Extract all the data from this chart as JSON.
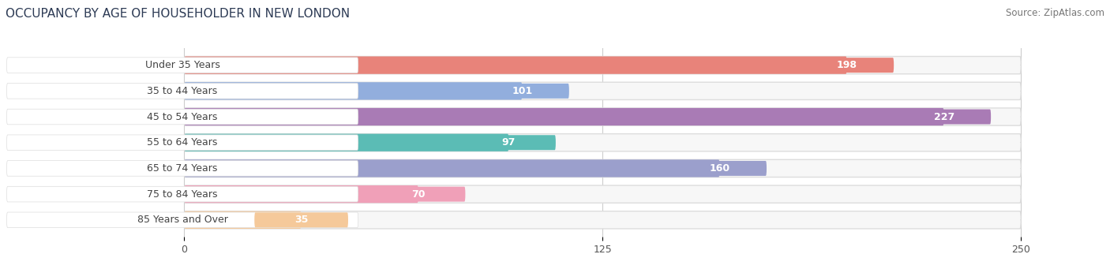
{
  "title": "OCCUPANCY BY AGE OF HOUSEHOLDER IN NEW LONDON",
  "source": "Source: ZipAtlas.com",
  "categories": [
    "Under 35 Years",
    "35 to 44 Years",
    "45 to 54 Years",
    "55 to 64 Years",
    "65 to 74 Years",
    "75 to 84 Years",
    "85 Years and Over"
  ],
  "values": [
    198,
    101,
    227,
    97,
    160,
    70,
    35
  ],
  "bar_colors": [
    "#E8837A",
    "#92AEDD",
    "#A97BB5",
    "#5BBCB5",
    "#9B9FCC",
    "#F0A0B8",
    "#F5C99A"
  ],
  "bar_bg_color": "#EBEBEB",
  "bar_bg_inner_color": "#F7F7F7",
  "label_pill_color": "#FFFFFF",
  "xlim_min": -55,
  "xlim_max": 260,
  "xdata_max": 250,
  "xticks": [
    0,
    125,
    250
  ],
  "title_fontsize": 11,
  "source_fontsize": 8.5,
  "label_fontsize": 9,
  "value_fontsize": 9,
  "background_color": "#FFFFFF",
  "title_color": "#2D3B55",
  "source_color": "#777777",
  "tick_color": "#555555"
}
